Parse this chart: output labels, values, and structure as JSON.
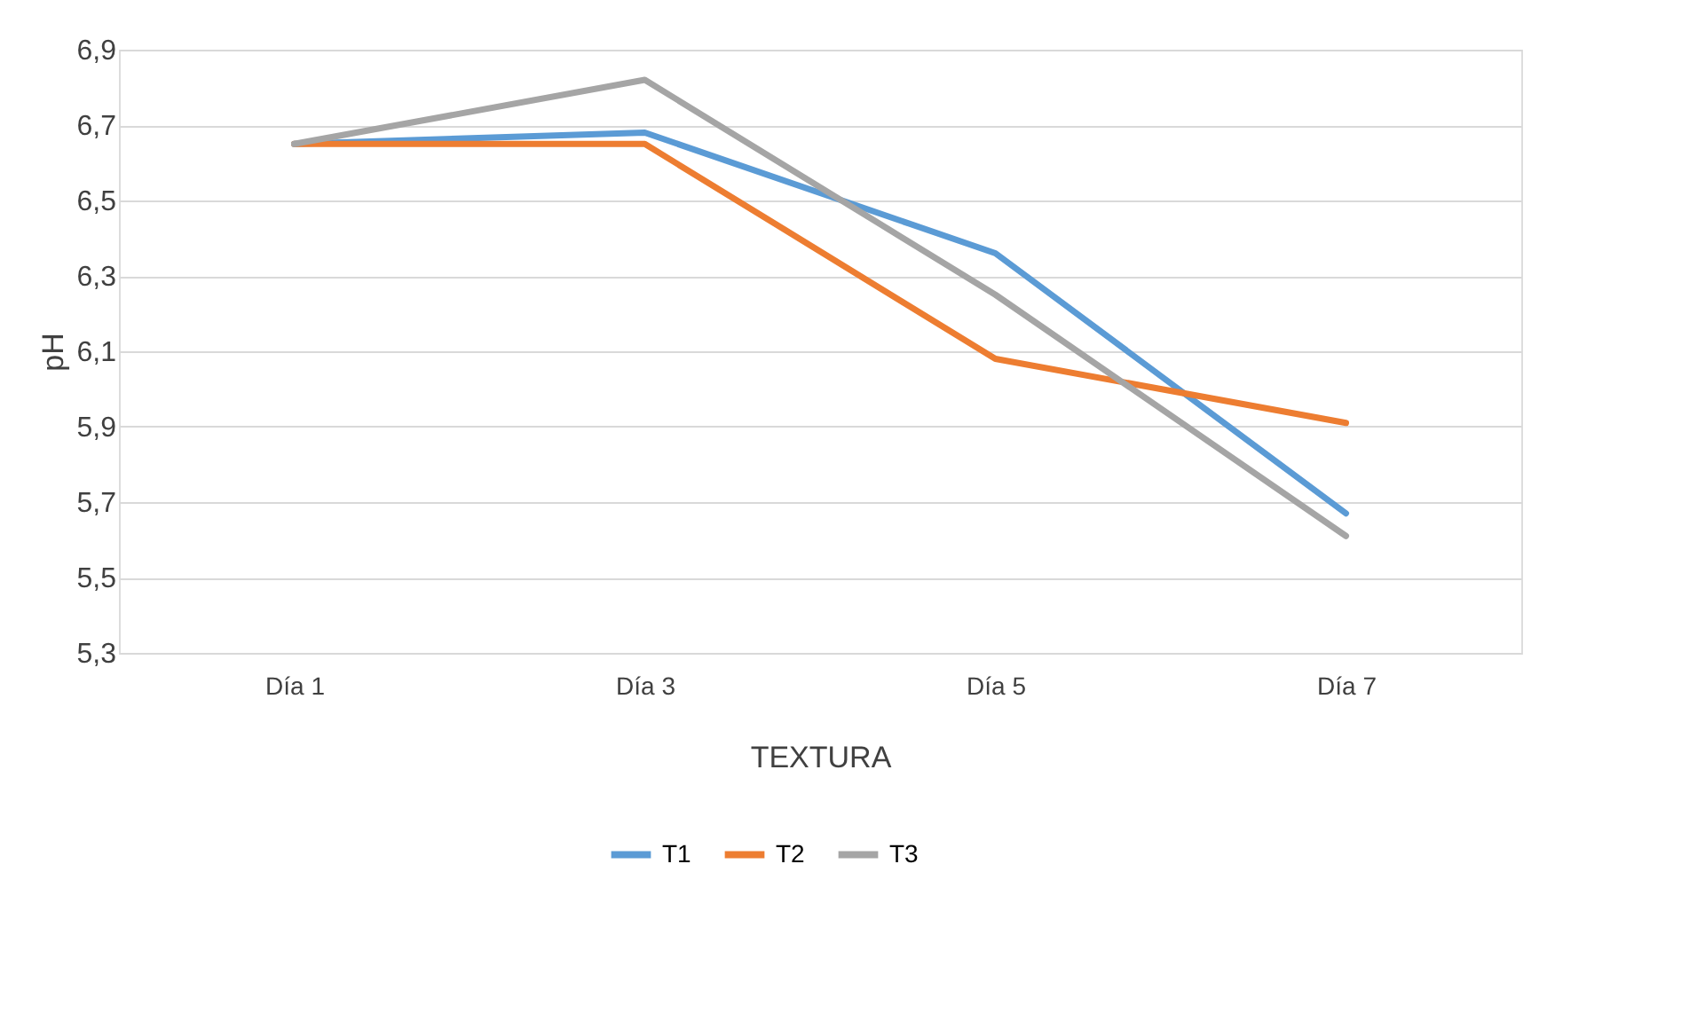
{
  "chart_data": {
    "type": "line",
    "xlabel": "TEXTURA",
    "ylabel": "pH",
    "categories": [
      "Día 1",
      "Día 3",
      "Día 5",
      "Día 7"
    ],
    "series": [
      {
        "name": "T1",
        "color": "#5b9bd5",
        "values": [
          6.65,
          6.68,
          6.36,
          5.67
        ]
      },
      {
        "name": "T2",
        "color": "#ed7d31",
        "values": [
          6.65,
          6.65,
          6.08,
          5.91
        ]
      },
      {
        "name": "T3",
        "color": "#a5a5a5",
        "values": [
          6.65,
          6.82,
          6.25,
          5.61
        ]
      }
    ],
    "ylim": [
      5.3,
      6.9
    ],
    "yticks": [
      {
        "value": 5.3,
        "label": "5,3"
      },
      {
        "value": 5.5,
        "label": "5,5"
      },
      {
        "value": 5.7,
        "label": "5,7"
      },
      {
        "value": 5.9,
        "label": "5,9"
      },
      {
        "value": 6.1,
        "label": "6,1"
      },
      {
        "value": 6.3,
        "label": "6,3"
      },
      {
        "value": 6.5,
        "label": "6,5"
      },
      {
        "value": 6.7,
        "label": "6,7"
      },
      {
        "value": 6.9,
        "label": "6,9"
      }
    ],
    "grid": "y",
    "legend": "bottom",
    "marker": "none",
    "line_style": "solid"
  }
}
